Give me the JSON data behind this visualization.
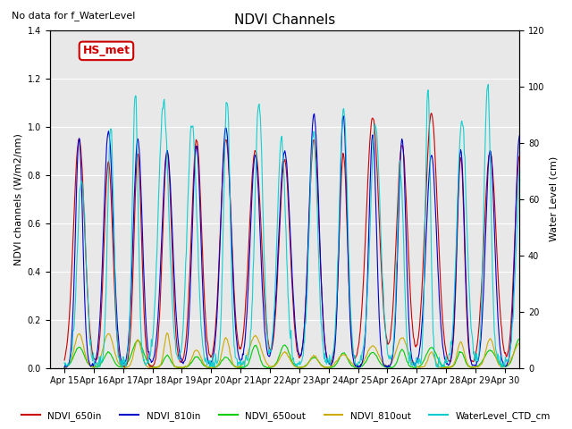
{
  "title": "NDVI Channels",
  "subtitle": "No data for f_WaterLevel",
  "ylabel_left": "NDVI channels (W/m2/nm)",
  "ylabel_right": "Water Level (cm)",
  "ylim_left": [
    0.0,
    1.4
  ],
  "ylim_right": [
    0,
    120
  ],
  "yticks_left": [
    0.0,
    0.2,
    0.4,
    0.6,
    0.8,
    1.0,
    1.2,
    1.4
  ],
  "yticks_right": [
    0,
    20,
    40,
    60,
    80,
    100,
    120
  ],
  "xtick_labels": [
    "Apr 15",
    "Apr 16",
    "Apr 17",
    "Apr 18",
    "Apr 19",
    "Apr 20",
    "Apr 21",
    "Apr 22",
    "Apr 23",
    "Apr 24",
    "Apr 25",
    "Apr 26",
    "Apr 27",
    "Apr 28",
    "Apr 29",
    "Apr 30"
  ],
  "n_days": 16,
  "annotation_box": "HS_met",
  "annotation_color": "#cc0000",
  "colors": {
    "NDVI_650in": "#cc0000",
    "NDVI_810in": "#0000cc",
    "NDVI_650out": "#00cc00",
    "NDVI_810out": "#ccaa00",
    "WaterLevel_CTD_cm": "#00cccc"
  },
  "background_color": "#e8e8e8",
  "grid_color": "#ffffff"
}
